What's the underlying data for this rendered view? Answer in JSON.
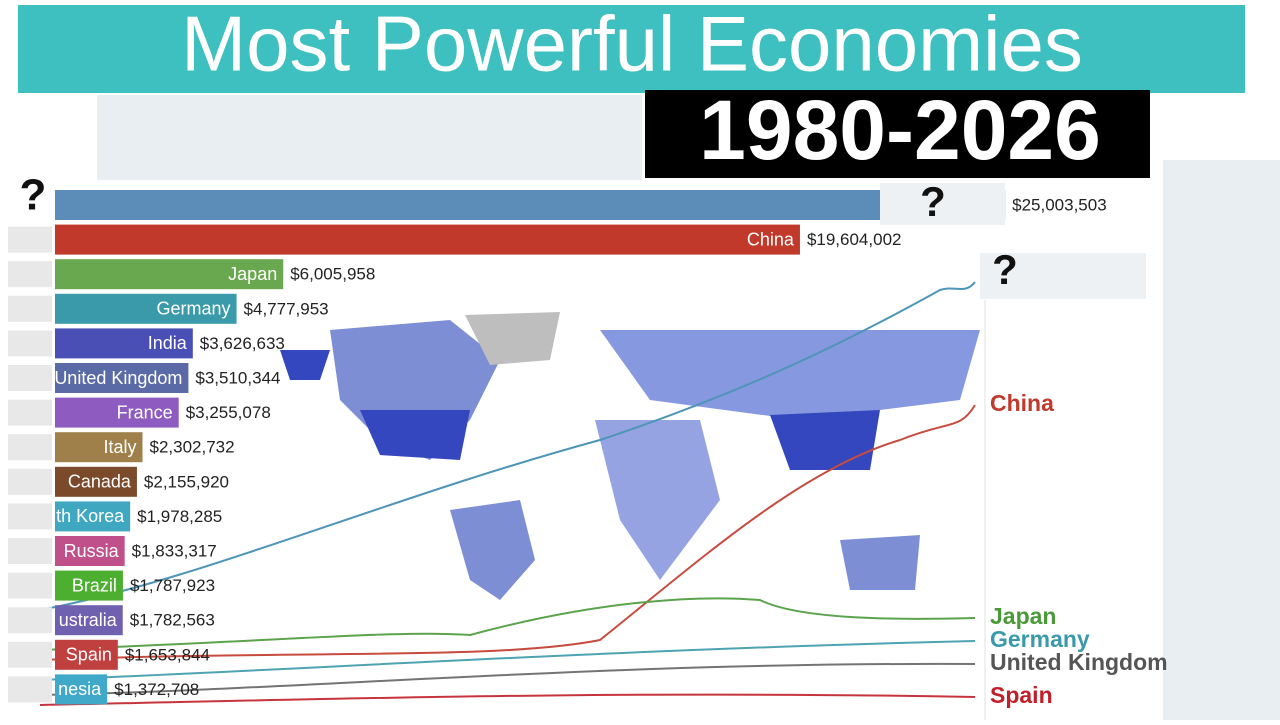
{
  "title": "Most Powerful Economies",
  "subtitle": "1980-2026",
  "mystery_marks": [
    "?",
    "?",
    "?"
  ],
  "chart_data": {
    "type": "bar",
    "orientation": "horizontal",
    "categories": [
      "?",
      "China",
      "Japan",
      "Germany",
      "India",
      "United Kingdom",
      "France",
      "Italy",
      "Canada",
      "th Korea",
      "Russia",
      "Brazil",
      "ustralia",
      "Spain",
      "nesia"
    ],
    "values": [
      25003503,
      19604002,
      6005958,
      4777953,
      3626633,
      3510344,
      3255078,
      2302732,
      2155920,
      1978285,
      1833317,
      1787923,
      1782563,
      1653844,
      1372708
    ],
    "value_labels": [
      "$25,003,503",
      "$19,604,002",
      "$6,005,958",
      "$4,777,953",
      "$3,626,633",
      "$3,510,344",
      "$3,255,078",
      "$2,302,732",
      "$2,155,920",
      "$1,978,285",
      "$1,833,317",
      "$1,787,923",
      "$1,782,563",
      "$1,653,844",
      "$1,372,708"
    ],
    "colors": [
      "#5b8db8",
      "#c0392b",
      "#6aa84f",
      "#3b9aaa",
      "#4a4fb5",
      "#5a6aa6",
      "#8e5cc0",
      "#a0804a",
      "#7a4a2a",
      "#3fa8c0",
      "#c0508a",
      "#4caf30",
      "#7060b0",
      "#c04040",
      "#40a8c8"
    ],
    "line_labels": [
      {
        "text": "China",
        "color": "#c0392b"
      },
      {
        "text": "Japan",
        "color": "#4a9a3a"
      },
      {
        "text": "Germany",
        "color": "#3b9aaa"
      },
      {
        "text": "United Kingdom",
        "color": "#555555"
      },
      {
        "text": "Spain",
        "color": "#c0202a"
      }
    ]
  }
}
